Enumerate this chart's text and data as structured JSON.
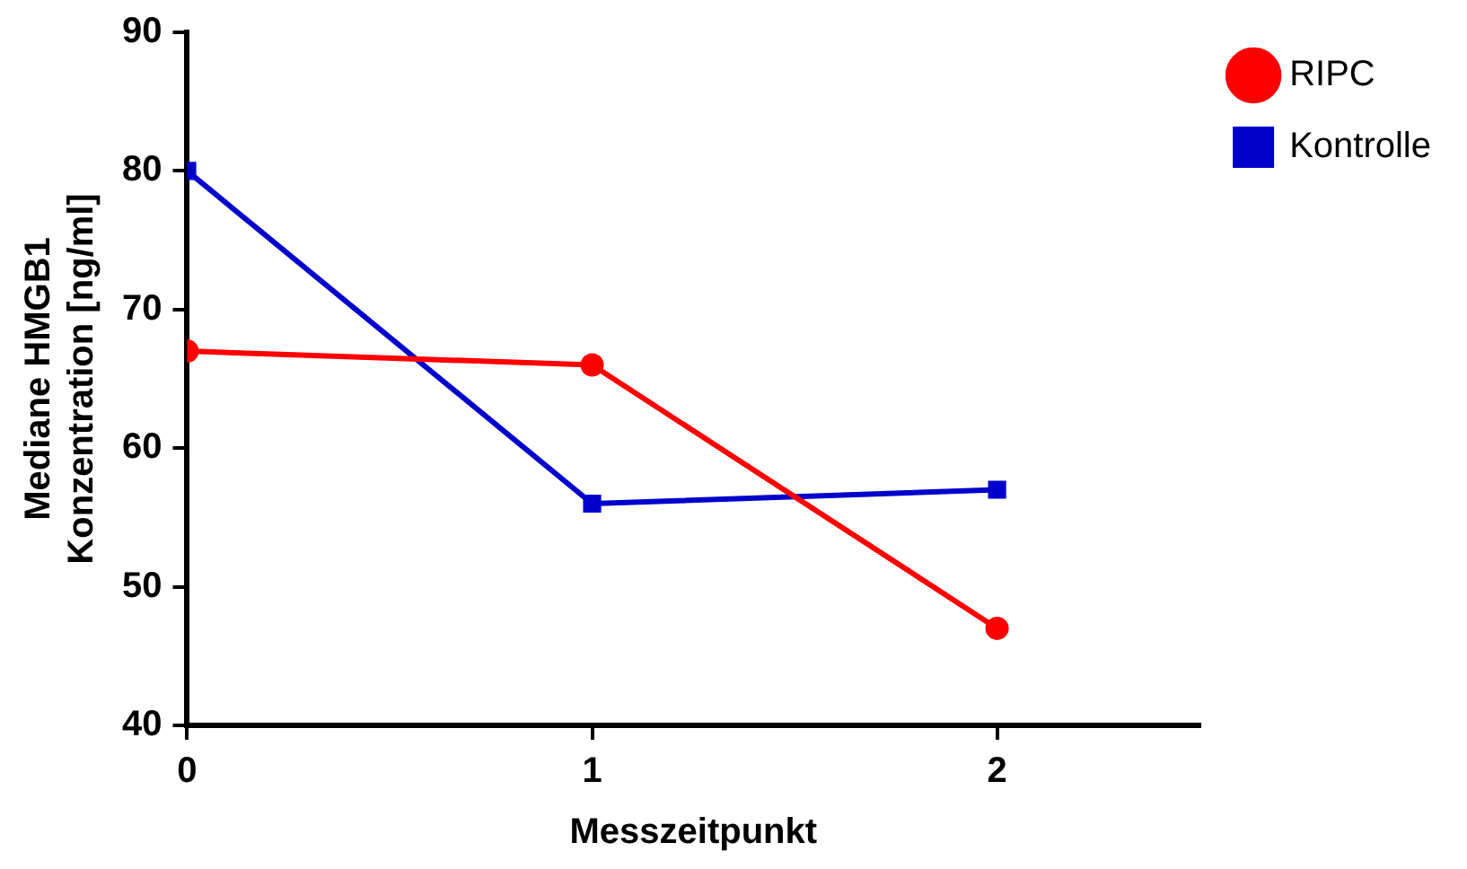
{
  "chart_data": {
    "type": "line",
    "xlabel": "Messzeitpunkt",
    "ylabel": "Mediane HMGB1\nKonzentration [ng/ml]",
    "x": [
      0,
      1,
      2
    ],
    "xlim": [
      0,
      2.5
    ],
    "xticks": [
      0,
      1,
      2
    ],
    "ylim": [
      40,
      90
    ],
    "yticks": [
      40,
      50,
      60,
      70,
      80,
      90
    ],
    "grid": false,
    "legend": "top right",
    "line_style": "solid",
    "series": [
      {
        "name": "RIPC",
        "color": "#ff0000",
        "marker": "circle",
        "values": [
          67,
          66,
          47
        ]
      },
      {
        "name": "Kontrolle",
        "color": "#0000cc",
        "marker": "square",
        "values": [
          80,
          56,
          57
        ]
      }
    ]
  }
}
